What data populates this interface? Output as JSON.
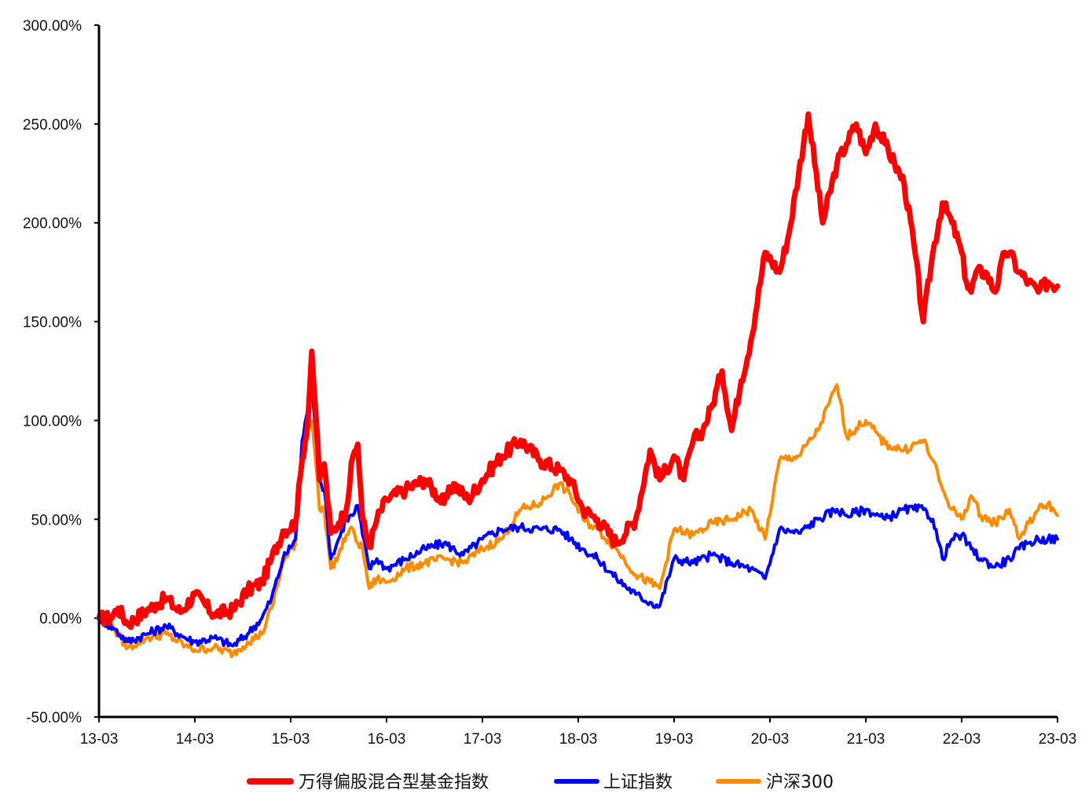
{
  "chart_data": {
    "type": "line",
    "title": "",
    "xlabel": "",
    "ylabel": "",
    "ylim": [
      -50,
      300
    ],
    "y_ticks": [
      "-50.00%",
      "0.00%",
      "50.00%",
      "100.00%",
      "150.00%",
      "200.00%",
      "250.00%",
      "300.00%"
    ],
    "y_tick_values": [
      -50,
      0,
      50,
      100,
      150,
      200,
      250,
      300
    ],
    "x_ticks": [
      "13-03",
      "14-03",
      "15-03",
      "16-03",
      "17-03",
      "18-03",
      "19-03",
      "20-03",
      "21-03",
      "22-03",
      "23-03"
    ],
    "legend_position": "bottom",
    "series": [
      {
        "name": "万得偏股混合型基金指数",
        "color": "#ff0000",
        "x": [
          0,
          0.12,
          0.2,
          0.3,
          0.5,
          0.6,
          0.7,
          0.85,
          1.0,
          1.2,
          1.4,
          1.55,
          1.7,
          1.8,
          1.92,
          2.05,
          2.12,
          2.18,
          2.22,
          2.26,
          2.3,
          2.35,
          2.42,
          2.5,
          2.58,
          2.65,
          2.7,
          2.75,
          2.82,
          2.9,
          3.0,
          3.2,
          3.4,
          3.6,
          3.7,
          3.85,
          4.0,
          4.2,
          4.4,
          4.6,
          4.8,
          4.92,
          5.05,
          5.2,
          5.4,
          5.6,
          5.75,
          5.85,
          6.0,
          6.1,
          6.2,
          6.3,
          6.4,
          6.5,
          6.6,
          6.7,
          6.8,
          6.95,
          7.1,
          7.2,
          7.3,
          7.4,
          7.55,
          7.7,
          7.8,
          7.9,
          8.0,
          8.1,
          8.2,
          8.3,
          8.4,
          8.5,
          8.6,
          8.7,
          8.8,
          8.9,
          9.0,
          9.05,
          9.1,
          9.15,
          9.25,
          9.35,
          9.45,
          9.5,
          9.6,
          9.7,
          9.8,
          9.9,
          10.0
        ],
        "values": [
          0,
          0,
          5,
          -3,
          4,
          7,
          10,
          3,
          12,
          2,
          4,
          14,
          18,
          30,
          44,
          48,
          80,
          100,
          135,
          105,
          70,
          78,
          43,
          48,
          55,
          82,
          88,
          50,
          36,
          50,
          60,
          65,
          70,
          58,
          68,
          60,
          70,
          82,
          90,
          80,
          75,
          70,
          55,
          50,
          38,
          50,
          85,
          70,
          82,
          70,
          90,
          95,
          108,
          125,
          95,
          120,
          140,
          185,
          175,
          195,
          225,
          255,
          200,
          230,
          240,
          250,
          235,
          250,
          240,
          230,
          220,
          190,
          150,
          185,
          210,
          200,
          185,
          170,
          165,
          175,
          175,
          165,
          185,
          185,
          175,
          170,
          165,
          170,
          168
        ]
      },
      {
        "name": "上证指数",
        "color": "#0000ff",
        "x": [
          0,
          0.15,
          0.3,
          0.5,
          0.7,
          0.9,
          1.0,
          1.2,
          1.4,
          1.55,
          1.7,
          1.8,
          1.92,
          2.05,
          2.12,
          2.18,
          2.22,
          2.26,
          2.3,
          2.35,
          2.42,
          2.5,
          2.58,
          2.65,
          2.7,
          2.75,
          2.82,
          2.9,
          3.0,
          3.2,
          3.4,
          3.6,
          3.8,
          4.0,
          4.2,
          4.4,
          4.6,
          4.8,
          4.92,
          5.05,
          5.2,
          5.4,
          5.6,
          5.75,
          5.85,
          6.0,
          6.2,
          6.4,
          6.6,
          6.8,
          6.95,
          7.1,
          7.3,
          7.5,
          7.7,
          7.8,
          8.0,
          8.2,
          8.4,
          8.6,
          8.7,
          8.8,
          8.9,
          9.0,
          9.1,
          9.2,
          9.35,
          9.5,
          9.6,
          9.7,
          9.8,
          9.9,
          10.0
        ],
        "values": [
          0,
          -5,
          -12,
          -8,
          -4,
          -10,
          -12,
          -10,
          -14,
          -8,
          0,
          10,
          30,
          40,
          90,
          105,
          120,
          95,
          70,
          65,
          30,
          40,
          50,
          52,
          57,
          42,
          25,
          30,
          25,
          30,
          35,
          38,
          32,
          40,
          45,
          46,
          45,
          45,
          40,
          35,
          30,
          20,
          12,
          8,
          6,
          30,
          28,
          32,
          28,
          25,
          20,
          45,
          43,
          50,
          55,
          52,
          55,
          50,
          55,
          55,
          50,
          30,
          40,
          42,
          35,
          30,
          26,
          30,
          35,
          38,
          40,
          40,
          40
        ]
      },
      {
        "name": "沪深300",
        "color": "#ff8c00",
        "x": [
          0,
          0.15,
          0.3,
          0.5,
          0.7,
          0.9,
          1.0,
          1.2,
          1.4,
          1.55,
          1.7,
          1.8,
          1.92,
          2.05,
          2.12,
          2.18,
          2.22,
          2.26,
          2.3,
          2.35,
          2.42,
          2.5,
          2.58,
          2.65,
          2.7,
          2.75,
          2.82,
          2.9,
          3.0,
          3.2,
          3.4,
          3.6,
          3.8,
          4.0,
          4.2,
          4.4,
          4.6,
          4.8,
          4.92,
          5.05,
          5.2,
          5.4,
          5.6,
          5.75,
          5.85,
          6.0,
          6.2,
          6.4,
          6.6,
          6.8,
          6.95,
          7.1,
          7.3,
          7.5,
          7.7,
          7.8,
          8.0,
          8.2,
          8.4,
          8.6,
          8.7,
          8.8,
          8.9,
          9.0,
          9.1,
          9.2,
          9.35,
          9.5,
          9.6,
          9.7,
          9.8,
          9.9,
          10.0
        ],
        "values": [
          0,
          -5,
          -15,
          -10,
          -8,
          -14,
          -16,
          -15,
          -18,
          -12,
          -8,
          5,
          28,
          38,
          80,
          95,
          100,
          80,
          55,
          55,
          25,
          32,
          42,
          45,
          38,
          35,
          15,
          20,
          18,
          25,
          28,
          30,
          28,
          35,
          40,
          55,
          58,
          68,
          62,
          50,
          45,
          35,
          22,
          18,
          15,
          45,
          42,
          48,
          50,
          55,
          40,
          80,
          82,
          95,
          118,
          92,
          100,
          88,
          85,
          90,
          80,
          65,
          55,
          50,
          62,
          52,
          48,
          55,
          40,
          48,
          55,
          58,
          52
        ]
      }
    ]
  }
}
